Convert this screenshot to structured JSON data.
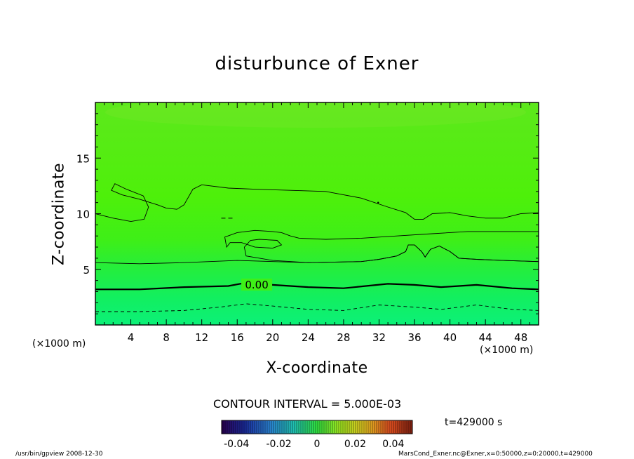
{
  "chart_data": {
    "type": "contour",
    "title": "disturbunce of Exner",
    "xlabel": "X-coordinate",
    "ylabel": "Z-coordinate",
    "x_unit": "(×1000 m)",
    "y_unit": "(×1000 m)",
    "xlim": [
      0,
      50
    ],
    "ylim": [
      0,
      20
    ],
    "x_ticks": [
      4,
      8,
      12,
      16,
      20,
      24,
      28,
      32,
      36,
      40,
      44,
      48
    ],
    "y_ticks": [
      5,
      10,
      15
    ],
    "contour_interval_text": "CONTOUR INTERVAL = 5.000E-03",
    "contour_label": "0.00",
    "contour_level_value": 0.0,
    "colorbar_ticks": [
      "-0.04",
      "-0.02",
      "0",
      "0.02",
      "0.04"
    ],
    "colorbar_range": [
      -0.05,
      0.05
    ],
    "time_label": "t=429000 s",
    "contours": [
      {
        "level": "zero",
        "style": "bold",
        "points": [
          [
            0,
            3.2
          ],
          [
            5,
            3.2
          ],
          [
            10,
            3.4
          ],
          [
            15,
            3.5
          ],
          [
            17,
            3.8
          ],
          [
            20,
            3.6
          ],
          [
            24,
            3.4
          ],
          [
            28,
            3.3
          ],
          [
            33,
            3.7
          ],
          [
            36,
            3.6
          ],
          [
            39,
            3.4
          ],
          [
            43,
            3.6
          ],
          [
            47,
            3.3
          ],
          [
            50,
            3.2
          ]
        ]
      },
      {
        "level": "negative",
        "style": "dashed",
        "points": [
          [
            0,
            1.2
          ],
          [
            5,
            1.2
          ],
          [
            10,
            1.3
          ],
          [
            14,
            1.6
          ],
          [
            17,
            1.9
          ],
          [
            20,
            1.7
          ],
          [
            24,
            1.4
          ],
          [
            28,
            1.3
          ],
          [
            32,
            1.8
          ],
          [
            36,
            1.6
          ],
          [
            39,
            1.4
          ],
          [
            43,
            1.8
          ],
          [
            47,
            1.4
          ],
          [
            50,
            1.3
          ]
        ]
      },
      {
        "level": "positive",
        "style": "thin",
        "points": [
          [
            0,
            5.6
          ],
          [
            5,
            5.5
          ],
          [
            10,
            5.6
          ],
          [
            16,
            5.8
          ],
          [
            24,
            5.6
          ],
          [
            30,
            5.7
          ],
          [
            32,
            5.9
          ],
          [
            34,
            6.2
          ],
          [
            35,
            6.6
          ],
          [
            35.3,
            7.2
          ],
          [
            36,
            7.2
          ],
          [
            36.8,
            6.6
          ],
          [
            37.2,
            6.1
          ],
          [
            37.8,
            6.8
          ],
          [
            38.8,
            7.1
          ],
          [
            40,
            6.6
          ],
          [
            41,
            6.0
          ],
          [
            43,
            5.9
          ],
          [
            46,
            5.8
          ],
          [
            50,
            5.7
          ]
        ]
      },
      {
        "level": "positive",
        "style": "thin",
        "points": [
          [
            50,
            5.7
          ],
          [
            46,
            5.8
          ],
          [
            43,
            5.9
          ],
          [
            41,
            6.0
          ],
          [
            40,
            6.6
          ],
          [
            38.8,
            7.1
          ],
          [
            37.8,
            6.8
          ],
          [
            37.2,
            6.1
          ],
          [
            36.8,
            6.6
          ],
          [
            36,
            7.2
          ],
          [
            35.3,
            7.2
          ],
          [
            35,
            6.6
          ],
          [
            34,
            6.2
          ],
          [
            32,
            5.9
          ],
          [
            30,
            5.7
          ],
          [
            24,
            5.6
          ],
          [
            20,
            5.8
          ],
          [
            17,
            6.2
          ],
          [
            16.8,
            7.0
          ],
          [
            17.5,
            7.6
          ],
          [
            18.5,
            7.7
          ],
          [
            20.5,
            7.6
          ],
          [
            21,
            7.2
          ],
          [
            20,
            6.9
          ],
          [
            18,
            7.0
          ],
          [
            16.5,
            7.4
          ],
          [
            15.2,
            7.4
          ],
          [
            14.8,
            7.0
          ],
          [
            14.6,
            7.9
          ],
          [
            16,
            8.3
          ],
          [
            18,
            8.5
          ],
          [
            20,
            8.4
          ],
          [
            21,
            8.3
          ],
          [
            22,
            8.0
          ],
          [
            23,
            7.8
          ],
          [
            26,
            7.7
          ],
          [
            30,
            7.8
          ],
          [
            34,
            8.0
          ],
          [
            38,
            8.2
          ],
          [
            42,
            8.4
          ],
          [
            50,
            8.4
          ]
        ]
      },
      {
        "level": "positive",
        "style": "thin",
        "points": [
          [
            0,
            10.0
          ],
          [
            2,
            9.6
          ],
          [
            4,
            9.3
          ],
          [
            5.5,
            9.5
          ],
          [
            6,
            10.6
          ],
          [
            5.4,
            11.6
          ],
          [
            3.5,
            12.2
          ],
          [
            2.2,
            12.7
          ],
          [
            1.8,
            12.1
          ],
          [
            3,
            11.7
          ],
          [
            5,
            11.3
          ],
          [
            7,
            10.8
          ],
          [
            8,
            10.5
          ],
          [
            9.2,
            10.4
          ],
          [
            10,
            10.8
          ],
          [
            11,
            12.2
          ],
          [
            12,
            12.6
          ],
          [
            15,
            12.3
          ],
          [
            18,
            12.2
          ],
          [
            22,
            12.1
          ],
          [
            26,
            12.0
          ],
          [
            30,
            11.4
          ],
          [
            33,
            10.6
          ],
          [
            35,
            10.1
          ],
          [
            36,
            9.5
          ],
          [
            37,
            9.5
          ],
          [
            38,
            10.0
          ],
          [
            40,
            10.1
          ],
          [
            42,
            9.8
          ],
          [
            44,
            9.6
          ],
          [
            46,
            9.6
          ],
          [
            48,
            10.0
          ],
          [
            50,
            10.1
          ]
        ]
      }
    ],
    "small_features": [
      {
        "kind": "dashes",
        "x": 14.2,
        "z": 9.6
      },
      {
        "kind": "dot",
        "x": 31.9,
        "z": 11.0
      }
    ]
  },
  "footer": {
    "left": "/usr/bin/gpview   2008-12-30",
    "right": "MarsCond_Exner.nc@Exner,x=0:50000,z=0:20000,t=429000"
  }
}
